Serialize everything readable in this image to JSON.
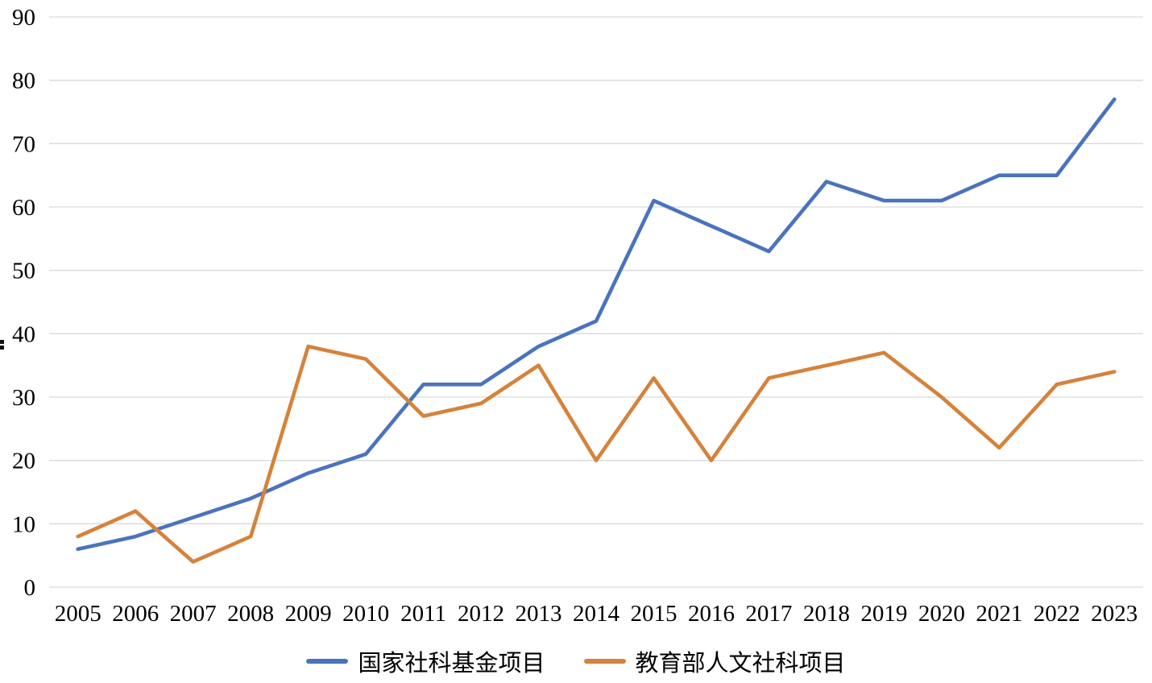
{
  "chart_data": {
    "type": "line",
    "title": "",
    "xlabel": "",
    "ylabel": "",
    "categories": [
      "2005",
      "2006",
      "2007",
      "2008",
      "2009",
      "2010",
      "2011",
      "2012",
      "2013",
      "2014",
      "2015",
      "2016",
      "2017",
      "2018",
      "2019",
      "2020",
      "2021",
      "2022",
      "2023"
    ],
    "series": [
      {
        "name": "国家社科基金项目",
        "color": "#4A73BD",
        "values": [
          6,
          8,
          11,
          14,
          18,
          21,
          32,
          32,
          38,
          42,
          61,
          57,
          53,
          64,
          61,
          61,
          65,
          65,
          77
        ]
      },
      {
        "name": "教育部人文社科项目",
        "color": "#D5823B",
        "values": [
          8,
          12,
          4,
          8,
          38,
          36,
          27,
          29,
          35,
          20,
          33,
          20,
          33,
          35,
          37,
          30,
          22,
          32,
          34
        ]
      }
    ],
    "ylim": [
      0,
      90
    ],
    "ytick_step": 10,
    "y_tick_labels": [
      "0",
      "10",
      "20",
      "30",
      "40",
      "50",
      "60",
      "70",
      "80",
      "90"
    ],
    "grid": "horizontal",
    "gridline_color": "#D9D9D9",
    "line_width": 4.6,
    "legend_position": "bottom"
  },
  "legend": {
    "items": [
      {
        "label": "国家社科基金项目"
      },
      {
        "label": "教育部人文社科项目"
      }
    ]
  }
}
